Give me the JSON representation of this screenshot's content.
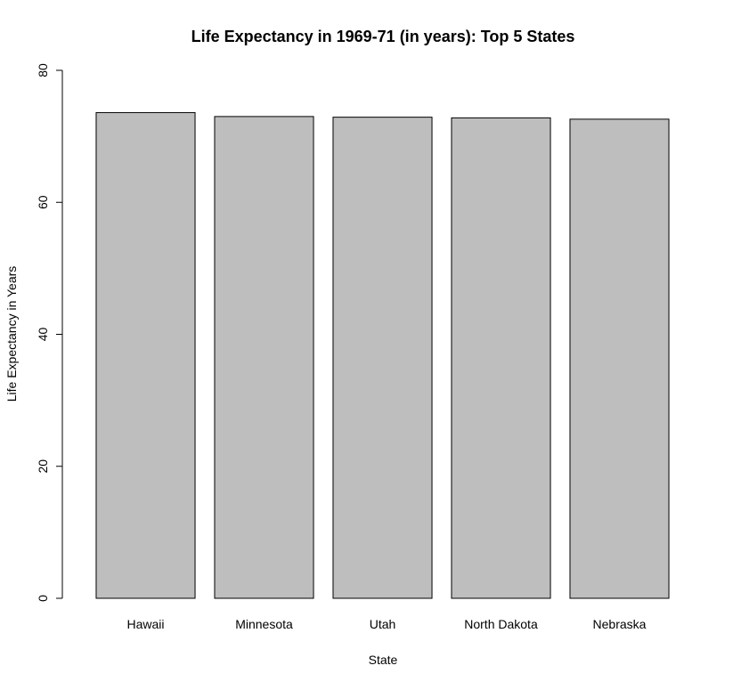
{
  "chart_data": {
    "type": "bar",
    "title": "Life Expectancy in 1969-71 (in years): Top 5 States",
    "xlabel": "State",
    "ylabel": "Life Expectancy in Years",
    "categories": [
      "Hawaii",
      "Minnesota",
      "Utah",
      "North Dakota",
      "Nebraska"
    ],
    "values": [
      73.6,
      73.0,
      72.9,
      72.8,
      72.6
    ],
    "ylim": [
      0,
      80
    ],
    "yticks": [
      "0",
      "20",
      "40",
      "60",
      "80"
    ],
    "grid": false,
    "legend": "none",
    "bar_fill": "#bebebe",
    "bar_stroke": "#000000"
  }
}
